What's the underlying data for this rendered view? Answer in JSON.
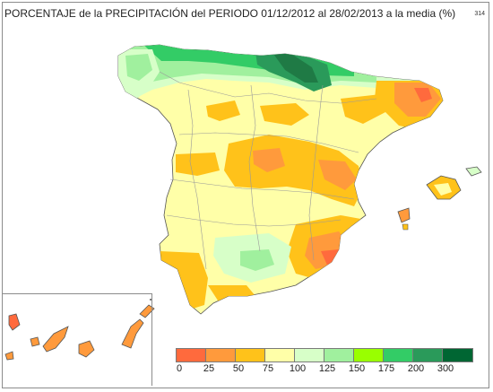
{
  "header": {
    "title": "PORCENTAJE de la PRECIPITACIÓN del PERIODO 01/12/2012 al 28/02/2013 a la media (%)",
    "map_id": "314"
  },
  "legend": {
    "labels": [
      "0",
      "25",
      "50",
      "75",
      "100",
      "125",
      "150",
      "175",
      "200",
      "300"
    ],
    "colors": [
      "#ff6a3d",
      "#ff9a3c",
      "#ffc21a",
      "#ffffa8",
      "#d7ffc8",
      "#a0f09e",
      "#99ff00",
      "#33cc66",
      "#2a9a5a",
      "#006633"
    ]
  },
  "map": {
    "region_colors": {
      "land_base": "#ffffa8",
      "dry": "#ffc21a",
      "very_dry": "#ff9a3c",
      "extreme_dry": "#ff6a3d",
      "normal_wet": "#d7ffc8",
      "wet": "#a0f09e",
      "very_wet": "#33cc66",
      "extreme_wet": "#2a9a5a",
      "sea": "#ffffff",
      "borders": "#999999"
    }
  }
}
